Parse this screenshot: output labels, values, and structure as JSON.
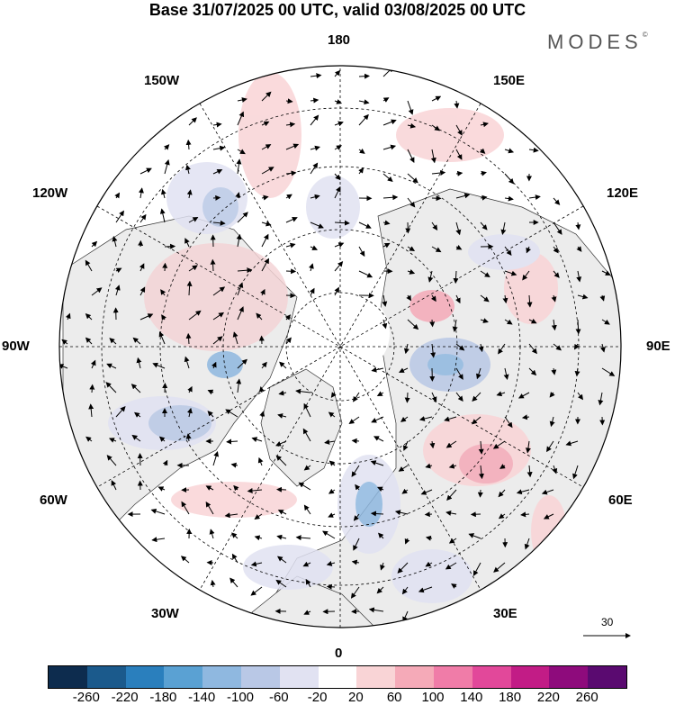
{
  "title": "Base 31/07/2025 00 UTC, valid 03/08/2025 00 UTC",
  "brand": "MODES",
  "brand_mark": "©",
  "longitude_labels": {
    "top": "180",
    "bottom": "0",
    "left": "90W",
    "right": "90E",
    "w150": "150W",
    "e150": "150E",
    "w120": "120W",
    "e120": "120E",
    "w60": "60W",
    "e60": "60E",
    "w30": "30W",
    "e30": "30E"
  },
  "vector_reference": "30",
  "colorbar": {
    "colors": [
      "#0d2c4e",
      "#1b5a8c",
      "#2a7fbd",
      "#5aa1d3",
      "#8fb8e0",
      "#b9c8e6",
      "#e1e2f2",
      "#ffffff",
      "#f9d4d6",
      "#f5aab8",
      "#f07ca8",
      "#e2489a",
      "#c21c86",
      "#8e0b7c",
      "#5a0a70"
    ],
    "ticks": [
      "-260",
      "-220",
      "-180",
      "-140",
      "-100",
      "-60",
      "-20",
      "20",
      "60",
      "100",
      "140",
      "180",
      "220",
      "260"
    ]
  }
}
